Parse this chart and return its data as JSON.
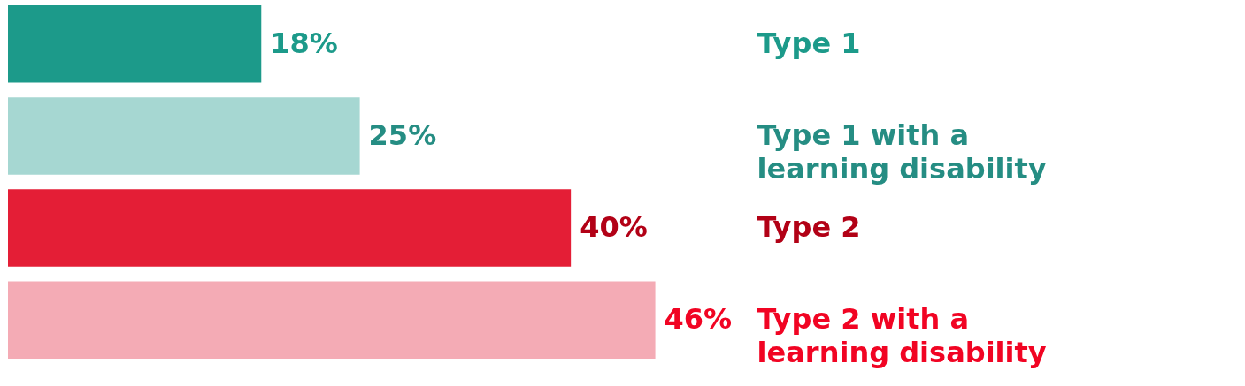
{
  "chart_data": {
    "type": "bar",
    "orientation": "horizontal",
    "categories": [
      "Type 1",
      "Type 1 with a learning disability",
      "Type 2",
      "Type 2 with a learning disability"
    ],
    "values": [
      18,
      25,
      40,
      46
    ],
    "colors": [
      "#1c9a8a",
      "#a6d7d2",
      "#e41e36",
      "#f4abb5"
    ],
    "data_labels": true,
    "value_labels": [
      "18%",
      "25%",
      "40%",
      "46%"
    ]
  }
}
